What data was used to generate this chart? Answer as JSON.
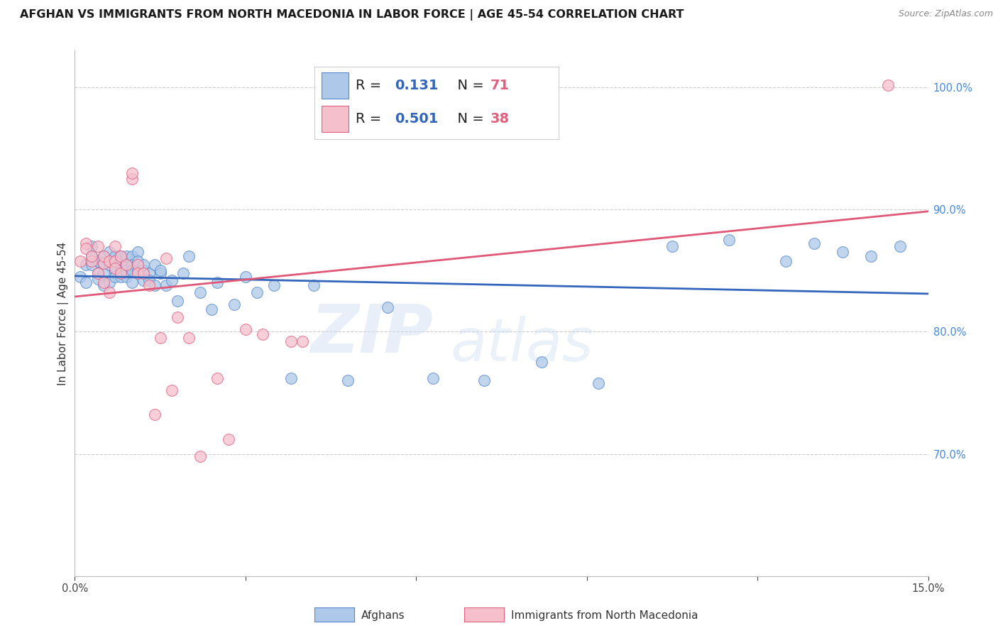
{
  "title": "AFGHAN VS IMMIGRANTS FROM NORTH MACEDONIA IN LABOR FORCE | AGE 45-54 CORRELATION CHART",
  "source": "Source: ZipAtlas.com",
  "ylabel": "In Labor Force | Age 45-54",
  "xlim": [
    0.0,
    0.15
  ],
  "ylim": [
    0.6,
    1.03
  ],
  "xtick_vals": [
    0.0,
    0.03,
    0.06,
    0.09,
    0.12,
    0.15
  ],
  "xtick_labels": [
    "0.0%",
    "",
    "",
    "",
    "",
    "15.0%"
  ],
  "yticks_right": [
    0.7,
    0.8,
    0.9,
    1.0
  ],
  "blue_dot_color": "#adc8e8",
  "blue_edge_color": "#5588cc",
  "pink_dot_color": "#f5c0cc",
  "pink_edge_color": "#e06080",
  "blue_line_color": "#3366bb",
  "pink_line_color": "#e05878",
  "right_tick_color": "#4488dd",
  "legend_blue_R": "0.131",
  "legend_blue_N": "71",
  "legend_pink_R": "0.501",
  "legend_pink_N": "38",
  "watermark_zip": "ZIP",
  "watermark_atlas": "atlas",
  "blue_scatter_x": [
    0.001,
    0.002,
    0.002,
    0.003,
    0.003,
    0.003,
    0.004,
    0.004,
    0.004,
    0.005,
    0.005,
    0.005,
    0.005,
    0.006,
    0.006,
    0.006,
    0.007,
    0.007,
    0.007,
    0.007,
    0.008,
    0.008,
    0.008,
    0.008,
    0.009,
    0.009,
    0.009,
    0.009,
    0.01,
    0.01,
    0.01,
    0.01,
    0.011,
    0.011,
    0.011,
    0.012,
    0.012,
    0.012,
    0.013,
    0.013,
    0.014,
    0.014,
    0.015,
    0.015,
    0.016,
    0.017,
    0.018,
    0.019,
    0.02,
    0.022,
    0.024,
    0.025,
    0.028,
    0.03,
    0.032,
    0.035,
    0.038,
    0.042,
    0.048,
    0.055,
    0.063,
    0.072,
    0.082,
    0.092,
    0.105,
    0.115,
    0.125,
    0.13,
    0.135,
    0.14,
    0.145
  ],
  "blue_scatter_y": [
    0.845,
    0.855,
    0.84,
    0.862,
    0.855,
    0.87,
    0.848,
    0.858,
    0.843,
    0.862,
    0.856,
    0.848,
    0.838,
    0.855,
    0.865,
    0.84,
    0.858,
    0.85,
    0.845,
    0.862,
    0.858,
    0.85,
    0.845,
    0.862,
    0.855,
    0.862,
    0.845,
    0.85,
    0.862,
    0.855,
    0.85,
    0.84,
    0.865,
    0.85,
    0.858,
    0.85,
    0.842,
    0.855,
    0.848,
    0.842,
    0.838,
    0.855,
    0.848,
    0.85,
    0.838,
    0.842,
    0.825,
    0.848,
    0.862,
    0.832,
    0.818,
    0.84,
    0.822,
    0.845,
    0.832,
    0.838,
    0.762,
    0.838,
    0.76,
    0.82,
    0.762,
    0.76,
    0.775,
    0.758,
    0.87,
    0.875,
    0.858,
    0.872,
    0.865,
    0.862,
    0.87
  ],
  "pink_scatter_x": [
    0.001,
    0.002,
    0.002,
    0.003,
    0.003,
    0.004,
    0.004,
    0.005,
    0.005,
    0.005,
    0.006,
    0.006,
    0.007,
    0.007,
    0.007,
    0.008,
    0.008,
    0.009,
    0.01,
    0.01,
    0.011,
    0.011,
    0.012,
    0.013,
    0.014,
    0.015,
    0.016,
    0.017,
    0.018,
    0.02,
    0.022,
    0.025,
    0.027,
    0.03,
    0.033,
    0.038,
    0.04,
    0.143
  ],
  "pink_scatter_y": [
    0.858,
    0.872,
    0.868,
    0.858,
    0.862,
    0.848,
    0.87,
    0.856,
    0.862,
    0.84,
    0.858,
    0.832,
    0.87,
    0.858,
    0.852,
    0.862,
    0.848,
    0.855,
    0.925,
    0.93,
    0.855,
    0.848,
    0.848,
    0.838,
    0.732,
    0.795,
    0.86,
    0.752,
    0.812,
    0.795,
    0.698,
    0.762,
    0.712,
    0.802,
    0.798,
    0.792,
    0.792,
    1.002
  ],
  "title_fontsize": 11.5,
  "axis_label_fontsize": 11,
  "tick_fontsize": 10.5,
  "legend_fontsize": 14
}
